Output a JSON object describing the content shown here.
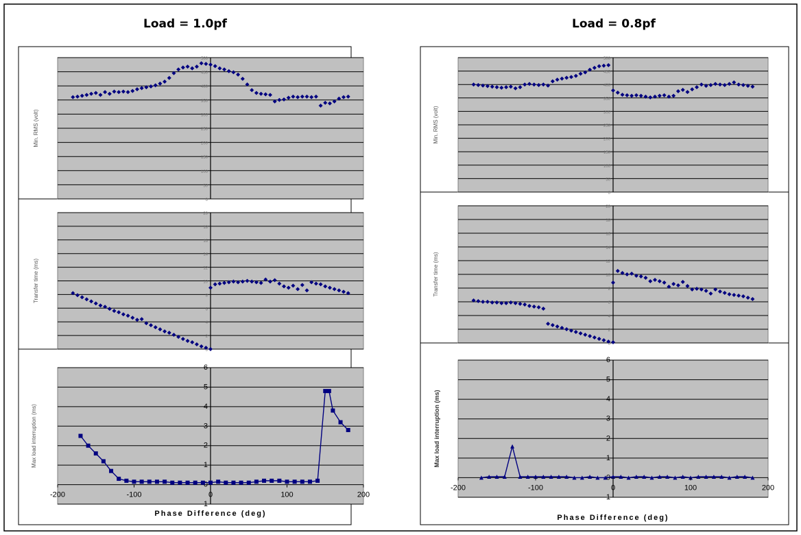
{
  "chart_data": [
    {
      "type": "panel-group",
      "title": "Load = 1.0pf",
      "xlabel": "Phase Difference (deg)",
      "xticks": [
        "-200",
        "-100",
        "0",
        "100",
        "200"
      ],
      "xlim": [
        -200,
        200
      ],
      "charts": [
        {
          "type": "scatter",
          "ylabel": "Min. RMS (volt)",
          "ylim": [
            0,
            500
          ],
          "yticks": [
            "500",
            "450",
            "400",
            "350",
            "300",
            "250",
            "200",
            "150",
            "100",
            "50",
            "0"
          ],
          "series": [
            {
              "x": [
                -180,
                -174,
                -168,
                -162,
                -156,
                -150,
                -144,
                -138,
                -132,
                -126,
                -120,
                -114,
                -108,
                -102,
                -96,
                -90,
                -84,
                -78,
                -72,
                -66,
                -60,
                -54,
                -48,
                -42,
                -36,
                -30,
                -24,
                -18,
                -12,
                -6,
                0,
                6,
                12,
                18,
                24,
                30,
                36,
                42,
                48,
                54,
                60,
                66,
                72,
                78,
                84,
                90,
                96,
                102,
                108,
                114,
                120,
                126,
                132,
                138,
                144,
                150,
                156,
                162,
                168,
                174,
                180
              ],
              "y": [
                360,
                362,
                365,
                368,
                372,
                375,
                368,
                378,
                372,
                380,
                378,
                380,
                378,
                382,
                388,
                392,
                395,
                398,
                402,
                408,
                415,
                428,
                445,
                458,
                465,
                468,
                462,
                468,
                480,
                478,
                475,
                470,
                462,
                458,
                452,
                448,
                440,
                425,
                405,
                385,
                375,
                372,
                370,
                368,
                345,
                350,
                352,
                358,
                362,
                360,
                362,
                362,
                360,
                362,
                330,
                340,
                338,
                345,
                355,
                360,
                362
              ]
            }
          ]
        },
        {
          "type": "scatter",
          "ylabel": "Transfer time (ms)",
          "ylim": [
            0,
            20
          ],
          "yticks": [
            "20",
            "18",
            "16",
            "14",
            "12",
            "10",
            "8",
            "6",
            "4",
            "2",
            "0"
          ],
          "series": [
            {
              "x": [
                -180,
                -174,
                -168,
                -162,
                -156,
                -150,
                -144,
                -138,
                -132,
                -126,
                -120,
                -114,
                -108,
                -102,
                -96,
                -90,
                -84,
                -78,
                -72,
                -66,
                -60,
                -54,
                -48,
                -42,
                -36,
                -30,
                -24,
                -18,
                -12,
                -6,
                0
              ],
              "y": [
                8.2,
                7.9,
                7.6,
                7.3,
                7.0,
                6.7,
                6.4,
                6.2,
                5.9,
                5.6,
                5.4,
                5.1,
                4.9,
                4.6,
                4.3,
                4.4,
                3.8,
                3.5,
                3.2,
                2.9,
                2.6,
                2.4,
                2.1,
                1.8,
                1.5,
                1.2,
                1.0,
                0.7,
                0.4,
                0.2,
                0.0
              ]
            },
            {
              "x": [
                0,
                6,
                12,
                18,
                24,
                30,
                36,
                42,
                48,
                54,
                60,
                66,
                72,
                78,
                84,
                90,
                96,
                102,
                108,
                114,
                120,
                126,
                132,
                138,
                144,
                150,
                156,
                162,
                168,
                174,
                180
              ],
              "y": [
                9.0,
                9.5,
                9.6,
                9.7,
                9.8,
                9.9,
                9.8,
                9.9,
                10.0,
                9.9,
                9.8,
                9.7,
                10.2,
                9.9,
                10.1,
                9.6,
                9.2,
                9.0,
                9.3,
                8.8,
                9.4,
                8.6,
                9.8,
                9.6,
                9.5,
                9.2,
                9.0,
                8.8,
                8.6,
                8.4,
                8.2
              ]
            }
          ]
        },
        {
          "type": "line",
          "ylabel": "Max load interruption (ms)",
          "ylim": [
            -1,
            6
          ],
          "yticks": [
            "6",
            "5",
            "4",
            "3",
            "2",
            "1",
            "0",
            "-1"
          ],
          "series": [
            {
              "x": [
                -170,
                -160,
                -150,
                -140,
                -130,
                -120,
                -110,
                -100,
                -90,
                -80,
                -70,
                -60,
                -50,
                -40,
                -30,
                -20,
                -10,
                0,
                10,
                20,
                30,
                40,
                50,
                60,
                70,
                80,
                90,
                100,
                110,
                120,
                130,
                140,
                150,
                155,
                160,
                170,
                180
              ],
              "y": [
                2.5,
                2.0,
                1.6,
                1.2,
                0.7,
                0.3,
                0.2,
                0.15,
                0.15,
                0.15,
                0.15,
                0.15,
                0.1,
                0.1,
                0.1,
                0.1,
                0.1,
                0.1,
                0.15,
                0.1,
                0.1,
                0.1,
                0.1,
                0.15,
                0.2,
                0.2,
                0.2,
                0.15,
                0.15,
                0.15,
                0.15,
                0.2,
                4.8,
                4.8,
                3.8,
                3.2,
                2.8
              ]
            }
          ]
        }
      ]
    },
    {
      "type": "panel-group",
      "title": "Load = 0.8pf",
      "xlabel": "Phase Difference (deg)",
      "xticks": [
        "-200",
        "-100",
        "0",
        "100",
        "200"
      ],
      "xlim": [
        -200,
        200
      ],
      "charts": [
        {
          "type": "scatter",
          "ylabel": "Min. RMS (volt)",
          "ylim": [
            0,
            500
          ],
          "yticks": [
            "500",
            "450",
            "400",
            "350",
            "300",
            "250",
            "200",
            "150",
            "100",
            "50",
            "0"
          ],
          "series": [
            {
              "x": [
                -180,
                -174,
                -168,
                -162,
                -156,
                -150,
                -144,
                -138,
                -132,
                -126,
                -120,
                -114,
                -108,
                -102,
                -96,
                -90,
                -84,
                -78,
                -72,
                -66,
                -60,
                -54,
                -48,
                -42,
                -36,
                -30,
                -24,
                -18,
                -12,
                -6,
                0,
                6,
                12,
                18,
                24,
                30,
                36,
                42,
                48,
                54,
                60,
                66,
                72,
                78,
                84,
                90,
                96,
                102,
                108,
                114,
                120,
                126,
                132,
                138,
                144,
                150,
                156,
                162,
                168,
                174,
                180
              ],
              "y": [
                400,
                398,
                396,
                394,
                392,
                390,
                388,
                390,
                392,
                386,
                390,
                400,
                402,
                400,
                398,
                400,
                396,
                412,
                418,
                422,
                425,
                428,
                432,
                440,
                445,
                455,
                462,
                468,
                470,
                472,
                378,
                370,
                362,
                360,
                358,
                360,
                358,
                355,
                352,
                355,
                358,
                360,
                355,
                358,
                375,
                380,
                372,
                382,
                390,
                400,
                395,
                398,
                402,
                400,
                398,
                402,
                408,
                400,
                398,
                395,
                392
              ]
            }
          ]
        },
        {
          "type": "scatter",
          "ylabel": "Transfer time (ms)",
          "ylim": [
            0,
            20
          ],
          "yticks": [
            "20",
            "18",
            "16",
            "14",
            "12",
            "10",
            "8",
            "6",
            "4",
            "2",
            "0"
          ],
          "series": [
            {
              "x": [
                -180,
                -174,
                -168,
                -162,
                -156,
                -150,
                -144,
                -138,
                -132,
                -126,
                -120,
                -114,
                -108,
                -102,
                -96,
                -90
              ],
              "y": [
                6.2,
                6.1,
                6.0,
                6.0,
                5.9,
                5.9,
                5.8,
                5.8,
                5.9,
                5.8,
                5.7,
                5.6,
                5.4,
                5.3,
                5.2,
                5.0
              ]
            },
            {
              "x": [
                -84,
                -78,
                -72,
                -66,
                -60,
                -54,
                -48,
                -42,
                -36,
                -30,
                -24,
                -18,
                -12,
                -6,
                0
              ],
              "y": [
                2.8,
                2.6,
                2.4,
                2.2,
                2.0,
                1.8,
                1.6,
                1.4,
                1.2,
                1.0,
                0.8,
                0.6,
                0.4,
                0.2,
                0.1
              ]
            },
            {
              "x": [
                0,
                6,
                12,
                18,
                24,
                30,
                36,
                42,
                48,
                54,
                60,
                66,
                72,
                78,
                84,
                90,
                96,
                102,
                108,
                114,
                120,
                126,
                132,
                138,
                144,
                150,
                156,
                162,
                168,
                174,
                180
              ],
              "y": [
                8.8,
                10.5,
                10.2,
                10.0,
                10.1,
                9.8,
                9.7,
                9.5,
                9.0,
                9.2,
                9.0,
                8.8,
                8.2,
                8.6,
                8.4,
                8.9,
                8.3,
                7.8,
                7.9,
                7.8,
                7.6,
                7.2,
                7.8,
                7.5,
                7.3,
                7.1,
                7.0,
                6.9,
                6.8,
                6.6,
                6.4
              ]
            }
          ]
        },
        {
          "type": "line",
          "ylabel": "Max load interruption (ms)",
          "ylim": [
            -1,
            6
          ],
          "yticks": [
            "6",
            "5",
            "4",
            "3",
            "2",
            "1",
            "0",
            "-1"
          ],
          "series": [
            {
              "x": [
                -170,
                -160,
                -150,
                -140,
                -130,
                -120,
                -110,
                -100,
                -90,
                -80,
                -70,
                -60,
                -50,
                -40,
                -30,
                -20,
                -10,
                0,
                10,
                20,
                30,
                40,
                50,
                60,
                70,
                80,
                90,
                100,
                110,
                120,
                130,
                140,
                150,
                160,
                170,
                180
              ],
              "y": [
                0,
                0.05,
                0.05,
                0.05,
                1.6,
                0.05,
                0.05,
                0.05,
                0.05,
                0.05,
                0.05,
                0.05,
                0,
                0,
                0.05,
                0,
                0,
                0.05,
                0.05,
                0,
                0.05,
                0.05,
                0,
                0.05,
                0.05,
                0,
                0.05,
                0,
                0.05,
                0.05,
                0.05,
                0.05,
                0,
                0.05,
                0.05,
                0
              ]
            }
          ]
        }
      ]
    }
  ]
}
